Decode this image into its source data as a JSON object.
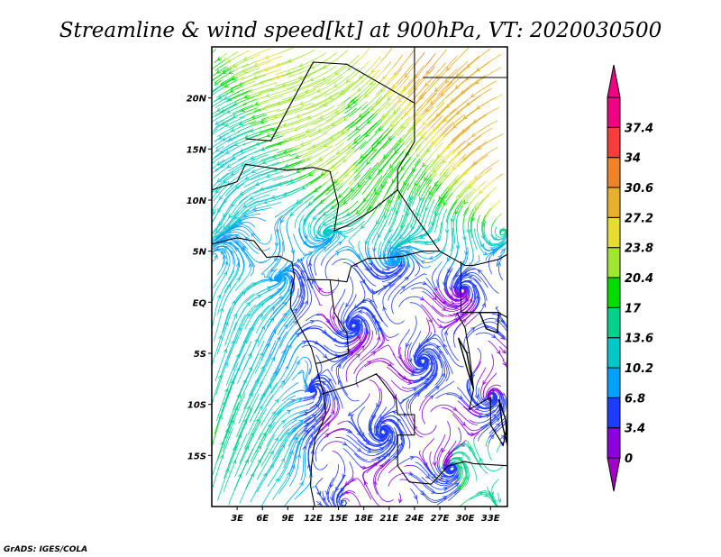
{
  "title": "Streamline & wind speed[kt] at 900hPa, VT: 2020030500",
  "footer": "GrADS: IGES/COLA",
  "map": {
    "lon_range": [
      0,
      35
    ],
    "lat_range": [
      -20,
      25
    ],
    "lon_labels": [
      {
        "lon": 3,
        "label": "3E"
      },
      {
        "lon": 6,
        "label": "6E"
      },
      {
        "lon": 9,
        "label": "9E"
      },
      {
        "lon": 12,
        "label": "12E"
      },
      {
        "lon": 15,
        "label": "15E"
      },
      {
        "lon": 18,
        "label": "18E"
      },
      {
        "lon": 21,
        "label": "21E"
      },
      {
        "lon": 24,
        "label": "24E"
      },
      {
        "lon": 27,
        "label": "27E"
      },
      {
        "lon": 30,
        "label": "30E"
      },
      {
        "lon": 33,
        "label": "33E"
      }
    ],
    "lat_labels": [
      {
        "lat": 20,
        "label": "20N"
      },
      {
        "lat": 15,
        "label": "15N"
      },
      {
        "lat": 10,
        "label": "10N"
      },
      {
        "lat": 5,
        "label": "5N"
      },
      {
        "lat": 0,
        "label": "EQ"
      },
      {
        "lat": -5,
        "label": "5S"
      },
      {
        "lat": -10,
        "label": "10S"
      },
      {
        "lat": -15,
        "label": "15S"
      }
    ]
  },
  "colorbar": {
    "levels": [
      "0",
      "3.4",
      "6.8",
      "10.2",
      "13.6",
      "17",
      "20.4",
      "23.8",
      "27.2",
      "30.6",
      "34",
      "37.4"
    ],
    "colors": [
      "#8c00dc",
      "#1e3cff",
      "#00a0ff",
      "#00c8c8",
      "#00d28c",
      "#00dc00",
      "#a0e632",
      "#e6dc32",
      "#e6af2d",
      "#f08228",
      "#fa3c3c",
      "#f00082"
    ],
    "under_color": "#a000c8",
    "over_color": "#f00082"
  }
}
